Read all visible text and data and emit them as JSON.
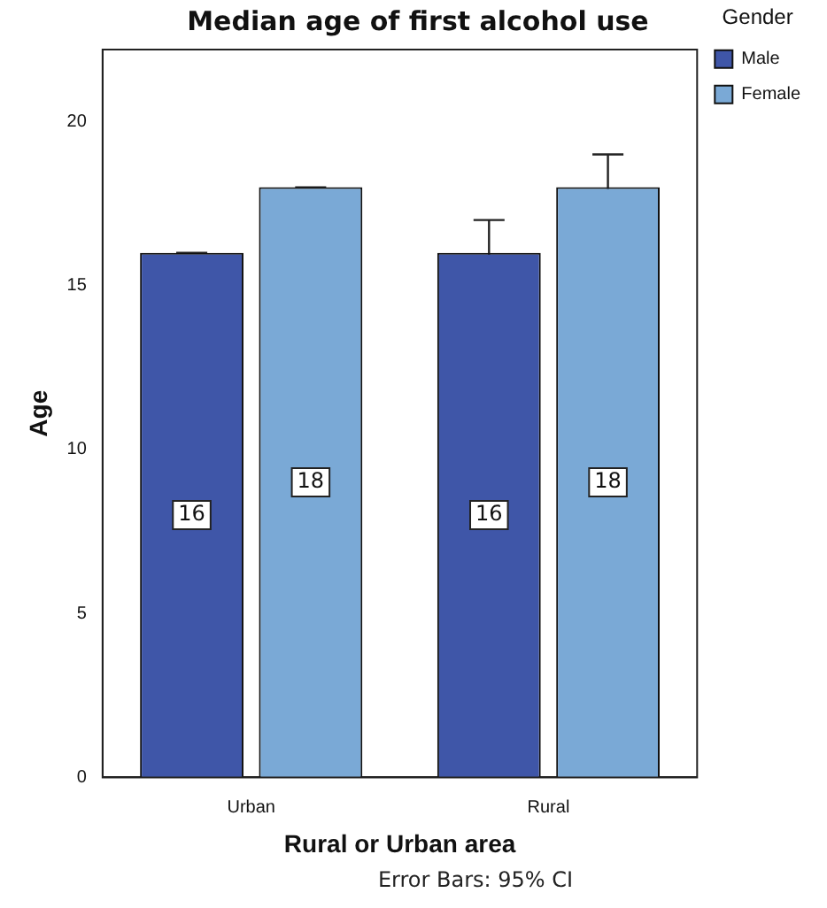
{
  "chart_data": {
    "type": "bar",
    "title": "Median age of first alcohol use",
    "xlabel": "Rural or Urban area",
    "ylabel": "Age",
    "legend_title": "Gender",
    "categories": [
      "Urban",
      "Rural"
    ],
    "series": [
      {
        "name": "Male",
        "color": "#3f56a8",
        "values": [
          16,
          16
        ],
        "errors": [
          0,
          1
        ]
      },
      {
        "name": "Female",
        "color": "#7aa9d6",
        "values": [
          18,
          18
        ],
        "errors": [
          0,
          1
        ]
      }
    ],
    "ylim": [
      0,
      22.2
    ],
    "yticks": [
      0,
      5,
      10,
      15,
      20
    ],
    "grid": false,
    "legend": "top right",
    "data_labels": true,
    "annotations": [
      "Error Bars: 95% CI"
    ]
  }
}
